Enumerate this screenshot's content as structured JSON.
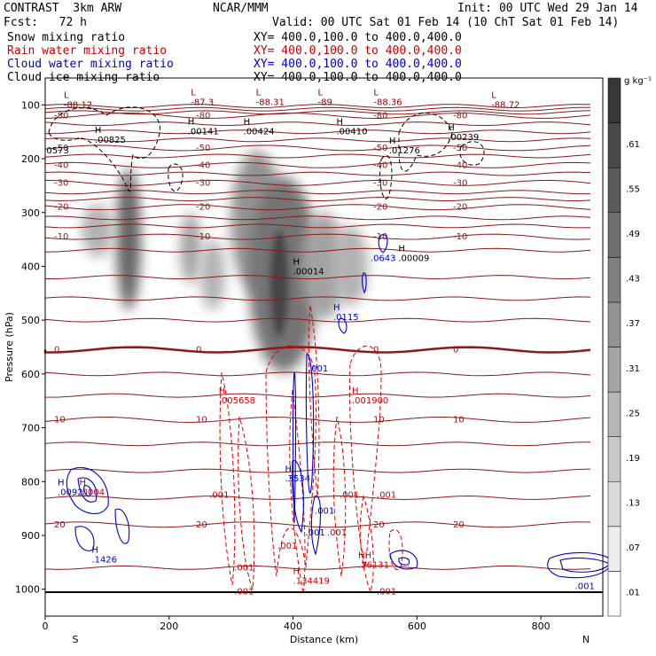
{
  "header": {
    "model": "CONTRAST  3km ARW",
    "center": "NCAR/MMM",
    "init": "Init: 00 UTC Wed 29 Jan 14",
    "fcst": "Fcst:   72 h",
    "valid": "Valid: 00 UTC Sat 01 Feb 14 (10 ChT Sat 01 Feb 14)"
  },
  "fields": [
    {
      "name": "Snow mixing ratio",
      "xy": "XY= 400.0,100.0 to 400.0,400.0",
      "color": "#000000"
    },
    {
      "name": "Rain water mixing ratio",
      "xy": "XY= 400.0,100.0 to 400.0,400.0",
      "color": "#cc0000"
    },
    {
      "name": "Cloud water mixing ratio",
      "xy": "XY= 400.0,100.0 to 400.0,400.0",
      "color": "#0000cc"
    },
    {
      "name": "Cloud ice mixing ratio",
      "xy": "XY= 400.0,100.0 to 400.0,400.0",
      "color": "#000000"
    }
  ],
  "chart_data": {
    "type": "cross-section",
    "xlabel": "Distance (km)",
    "ylabel": "Pressure (hPa)",
    "xlim": [
      0,
      900
    ],
    "ylim": [
      1050,
      50
    ],
    "xticks": [
      0,
      200,
      400,
      600,
      800
    ],
    "yticks": [
      100,
      200,
      300,
      400,
      500,
      600,
      700,
      800,
      900,
      1000
    ],
    "left_end": "S",
    "right_end": "N",
    "colorbar": {
      "unit": "g kg⁻¹",
      "levels": [
        ".01",
        ".07",
        ".13",
        ".19",
        ".25",
        ".31",
        ".37",
        ".43",
        ".49",
        ".55",
        ".61"
      ]
    },
    "temperature_contours": [
      {
        "label": "-80",
        "p": 120
      },
      {
        "label": "-50",
        "p": 180
      },
      {
        "label": "-40",
        "p": 212
      },
      {
        "label": "-30",
        "p": 245
      },
      {
        "label": "-20",
        "p": 290
      },
      {
        "label": "-10",
        "p": 345
      },
      {
        "label": "0",
        "p": 555
      },
      {
        "label": "10",
        "p": 685
      },
      {
        "label": "20",
        "p": 880
      }
    ],
    "extrema_labels": [
      {
        "sym": "L",
        "value": "-88.12",
        "x": 30,
        "p": 100,
        "color": "#8b0000"
      },
      {
        "sym": "L",
        "value": "-87.3",
        "x": 235,
        "p": 95,
        "color": "#8b0000"
      },
      {
        "sym": "L",
        "value": "-88.31",
        "x": 340,
        "p": 95,
        "color": "#8b0000"
      },
      {
        "sym": "L",
        "value": "-89",
        "x": 440,
        "p": 95,
        "color": "#8b0000"
      },
      {
        "sym": "L",
        "value": "-88.36",
        "x": 530,
        "p": 95,
        "color": "#8b0000"
      },
      {
        "sym": "L",
        "value": "-88.72",
        "x": 720,
        "p": 100,
        "color": "#8b0000"
      },
      {
        "sym": "H",
        "value": ".00825",
        "x": 80,
        "p": 165,
        "color": "#000000"
      },
      {
        "sym": "H",
        "value": ".00141",
        "x": 230,
        "p": 150,
        "color": "#000000"
      },
      {
        "sym": "H",
        "value": ".00424",
        "x": 320,
        "p": 150,
        "color": "#000000"
      },
      {
        "sym": "H",
        "value": ".00410",
        "x": 470,
        "p": 150,
        "color": "#000000"
      },
      {
        "sym": "H",
        "value": ".00239",
        "x": 650,
        "p": 160,
        "color": "#000000"
      },
      {
        "sym": "H",
        "value": ".01276",
        "x": 555,
        "p": 185,
        "color": "#000000"
      },
      {
        "sym": "",
        "value": "0573",
        "x": 2,
        "p": 185,
        "color": "#000000"
      },
      {
        "sym": "H",
        "value": ".00014",
        "x": 400,
        "p": 410,
        "color": "#000000"
      },
      {
        "sym": "H",
        "value": ".00009",
        "x": 570,
        "p": 385,
        "color": "#000000"
      },
      {
        "sym": "",
        "value": ".0643",
        "x": 525,
        "p": 385,
        "color": "#0000cc"
      },
      {
        "sym": "H",
        "value": ".0115",
        "x": 465,
        "p": 495,
        "color": "#0000cc"
      },
      {
        "sym": "",
        "value": ".001",
        "x": 425,
        "p": 590,
        "color": "#0000cc"
      },
      {
        "sym": "H",
        "value": ".005658",
        "x": 280,
        "p": 650,
        "color": "#cc0000"
      },
      {
        "sym": "H",
        "value": ".001900",
        "x": 495,
        "p": 650,
        "color": "#cc0000"
      },
      {
        "sym": "H",
        "value": ".3534",
        "x": 387,
        "p": 795,
        "color": "#0000cc"
      },
      {
        "sym": "H",
        "value": ".0092",
        "x": 20,
        "p": 820,
        "color": "#0000cc"
      },
      {
        "sym": "H",
        "value": ".0004",
        "x": 55,
        "p": 820,
        "color": "#cc0000"
      },
      {
        "sym": "",
        "value": ".001",
        "x": 265,
        "p": 825,
        "color": "#cc0000"
      },
      {
        "sym": "",
        "value": ".001",
        "x": 475,
        "p": 825,
        "color": "#cc0000"
      },
      {
        "sym": "",
        "value": ".001",
        "x": 535,
        "p": 825,
        "color": "#cc0000"
      },
      {
        "sym": "",
        "value": ".001",
        "x": 435,
        "p": 855,
        "color": "#0000cc"
      },
      {
        "sym": "",
        "value": ".001",
        "x": 420,
        "p": 895,
        "color": "#0000cc"
      },
      {
        "sym": "",
        "value": ".001",
        "x": 455,
        "p": 895,
        "color": "#cc0000"
      },
      {
        "sym": "",
        "value": ".001",
        "x": 375,
        "p": 920,
        "color": "#cc0000"
      },
      {
        "sym": "H",
        "value": ".1426",
        "x": 75,
        "p": 945,
        "color": "#0000cc"
      },
      {
        "sym": "",
        "value": ".001",
        "x": 305,
        "p": 960,
        "color": "#cc0000"
      },
      {
        "sym": "H",
        "value": ".134419",
        "x": 400,
        "p": 985,
        "color": "#cc0000"
      },
      {
        "sym": "HH",
        "value": ".26131",
        "x": 505,
        "p": 955,
        "color": "#cc0000"
      },
      {
        "sym": "",
        "value": ".001",
        "x": 305,
        "p": 1005,
        "color": "#cc0000"
      },
      {
        "sym": "",
        "value": ".001",
        "x": 535,
        "p": 1005,
        "color": "#cc0000"
      },
      {
        "sym": "",
        "value": ".001",
        "x": 855,
        "p": 995,
        "color": "#0000cc"
      }
    ]
  }
}
